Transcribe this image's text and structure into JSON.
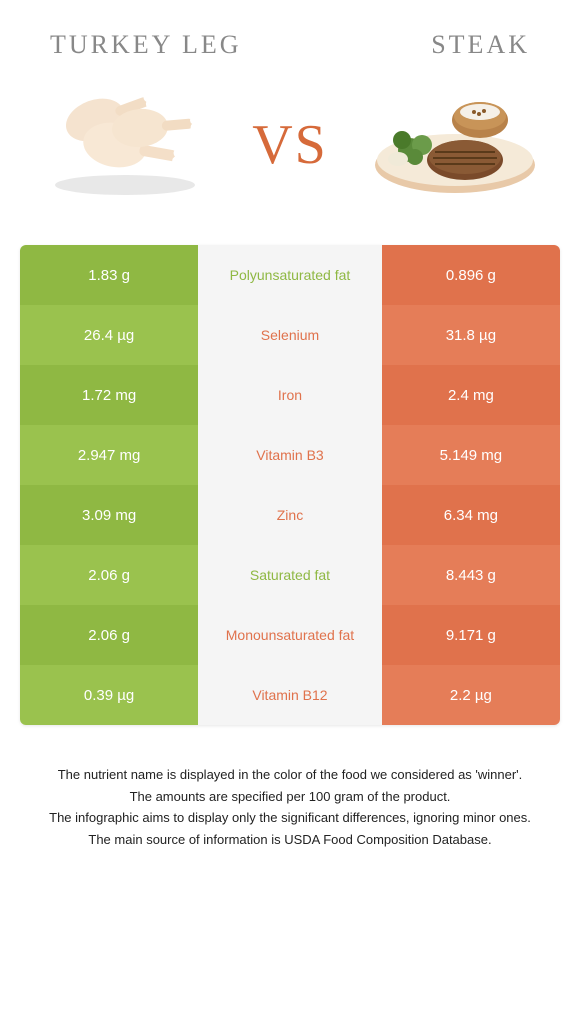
{
  "header": {
    "left_title": "TURKEY LEG",
    "right_title": "STEAK"
  },
  "vs_label": "VS",
  "colors": {
    "left_cell": "#8fb843",
    "left_cell_alt": "#9ac24e",
    "right_cell": "#e0724c",
    "right_cell_alt": "#e57d58",
    "mid_bg": "#f5f5f5",
    "left_winner_text": "#8fb843",
    "right_winner_text": "#e0724c",
    "title_text": "#888888",
    "vs_text": "#d66a3a"
  },
  "rows": [
    {
      "left": "1.83 g",
      "nutrient": "Polyunsaturated fat",
      "right": "0.896 g",
      "winner": "left"
    },
    {
      "left": "26.4 µg",
      "nutrient": "Selenium",
      "right": "31.8 µg",
      "winner": "right"
    },
    {
      "left": "1.72 mg",
      "nutrient": "Iron",
      "right": "2.4 mg",
      "winner": "right"
    },
    {
      "left": "2.947 mg",
      "nutrient": "Vitamin B3",
      "right": "5.149 mg",
      "winner": "right"
    },
    {
      "left": "3.09 mg",
      "nutrient": "Zinc",
      "right": "6.34 mg",
      "winner": "right"
    },
    {
      "left": "2.06 g",
      "nutrient": "Saturated fat",
      "right": "8.443 g",
      "winner": "left"
    },
    {
      "left": "2.06 g",
      "nutrient": "Monounsaturated fat",
      "right": "9.171 g",
      "winner": "right"
    },
    {
      "left": "0.39 µg",
      "nutrient": "Vitamin B12",
      "right": "2.2 µg",
      "winner": "right"
    }
  ],
  "footer": {
    "line1": "The nutrient name is displayed in the color of the food we considered as 'winner'.",
    "line2": "The amounts are specified per 100 gram of the product.",
    "line3": "The infographic aims to display only the significant differences, ignoring minor ones.",
    "line4": "The main source of information is USDA Food Composition Database."
  }
}
